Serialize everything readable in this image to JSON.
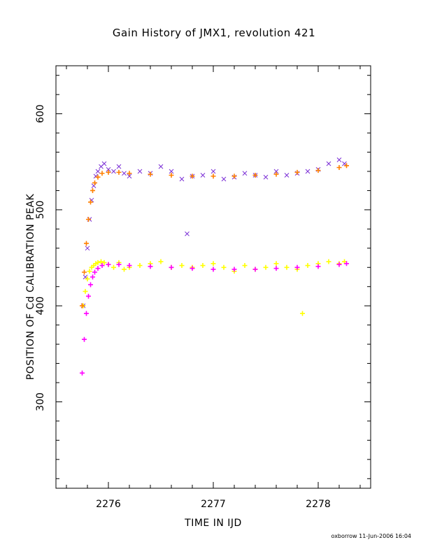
{
  "chart_data": {
    "type": "scatter",
    "title": "Gain History of JMX1, revolution 421",
    "xlabel": "TIME IN IJD",
    "ylabel": "POSITION OF Cd CALIBRATION PEAK",
    "xlim": [
      2275.5,
      2278.5
    ],
    "ylim": [
      210,
      650
    ],
    "x_ticks": [
      2276,
      2277,
      2278
    ],
    "x_tick_labels": [
      "2276",
      "2277",
      "2278"
    ],
    "y_ticks": [
      300,
      400,
      500,
      600
    ],
    "y_tick_labels": [
      "300",
      "400",
      "500",
      "600"
    ],
    "grid": false,
    "series": [
      {
        "marker": "x",
        "color": "#7b2fd6",
        "x": [
          2275.76,
          2275.78,
          2275.8,
          2275.82,
          2275.84,
          2275.86,
          2275.88,
          2275.9,
          2275.93,
          2275.96,
          2276.0,
          2276.05,
          2276.1,
          2276.15,
          2276.2,
          2276.3,
          2276.4,
          2276.5,
          2276.6,
          2276.7,
          2276.75,
          2276.8,
          2276.9,
          2277.0,
          2277.1,
          2277.2,
          2277.3,
          2277.4,
          2277.5,
          2277.6,
          2277.7,
          2277.8,
          2277.9,
          2278.0,
          2278.1,
          2278.2,
          2278.25
        ],
        "y": [
          400,
          430,
          460,
          490,
          510,
          525,
          535,
          540,
          545,
          548,
          542,
          540,
          545,
          538,
          535,
          540,
          538,
          545,
          540,
          532,
          475,
          535,
          536,
          540,
          532,
          534,
          538,
          536,
          534,
          540,
          536,
          538,
          540,
          542,
          548,
          552,
          548
        ]
      },
      {
        "marker": "+",
        "color": "#ffff00",
        "x": [
          2275.76,
          2275.78,
          2275.8,
          2275.82,
          2275.84,
          2275.86,
          2275.88,
          2275.9,
          2275.93,
          2275.96,
          2276.0,
          2276.05,
          2276.1,
          2276.15,
          2276.2,
          2276.3,
          2276.4,
          2276.5,
          2276.6,
          2276.7,
          2276.8,
          2276.9,
          2277.0,
          2277.1,
          2277.2,
          2277.3,
          2277.4,
          2277.5,
          2277.6,
          2277.7,
          2277.8,
          2277.85,
          2277.9,
          2278.0,
          2278.1,
          2278.2,
          2278.25
        ],
        "y": [
          400,
          415,
          428,
          436,
          440,
          442,
          444,
          445,
          446,
          445,
          443,
          440,
          445,
          438,
          440,
          442,
          444,
          446,
          440,
          442,
          440,
          442,
          444,
          440,
          436,
          442,
          438,
          440,
          444,
          440,
          438,
          392,
          442,
          444,
          446,
          444,
          446
        ]
      },
      {
        "marker": "+",
        "color": "#ff00ff",
        "x": [
          2275.75,
          2275.77,
          2275.79,
          2275.81,
          2275.83,
          2275.85,
          2275.87,
          2275.9,
          2275.94,
          2276.0,
          2276.1,
          2276.2,
          2276.4,
          2276.6,
          2276.8,
          2277.0,
          2277.2,
          2277.4,
          2277.6,
          2277.8,
          2278.0,
          2278.2,
          2278.27
        ],
        "y": [
          330,
          365,
          392,
          410,
          422,
          430,
          435,
          439,
          442,
          443,
          443,
          442,
          441,
          440,
          439,
          438,
          438,
          438,
          439,
          440,
          441,
          443,
          444
        ]
      },
      {
        "marker": "+",
        "color": "#ff8000",
        "x": [
          2275.75,
          2275.77,
          2275.79,
          2275.81,
          2275.83,
          2275.85,
          2275.87,
          2275.9,
          2275.94,
          2276.0,
          2276.1,
          2276.2,
          2276.4,
          2276.6,
          2276.8,
          2277.0,
          2277.2,
          2277.4,
          2277.6,
          2277.8,
          2278.0,
          2278.2,
          2278.27
        ],
        "y": [
          400,
          435,
          465,
          490,
          508,
          520,
          528,
          534,
          538,
          539,
          539,
          538,
          537,
          536,
          535,
          535,
          535,
          536,
          537,
          539,
          541,
          544,
          546
        ]
      }
    ]
  },
  "footer": "oxborrow 11-Jun-2006 16:04"
}
